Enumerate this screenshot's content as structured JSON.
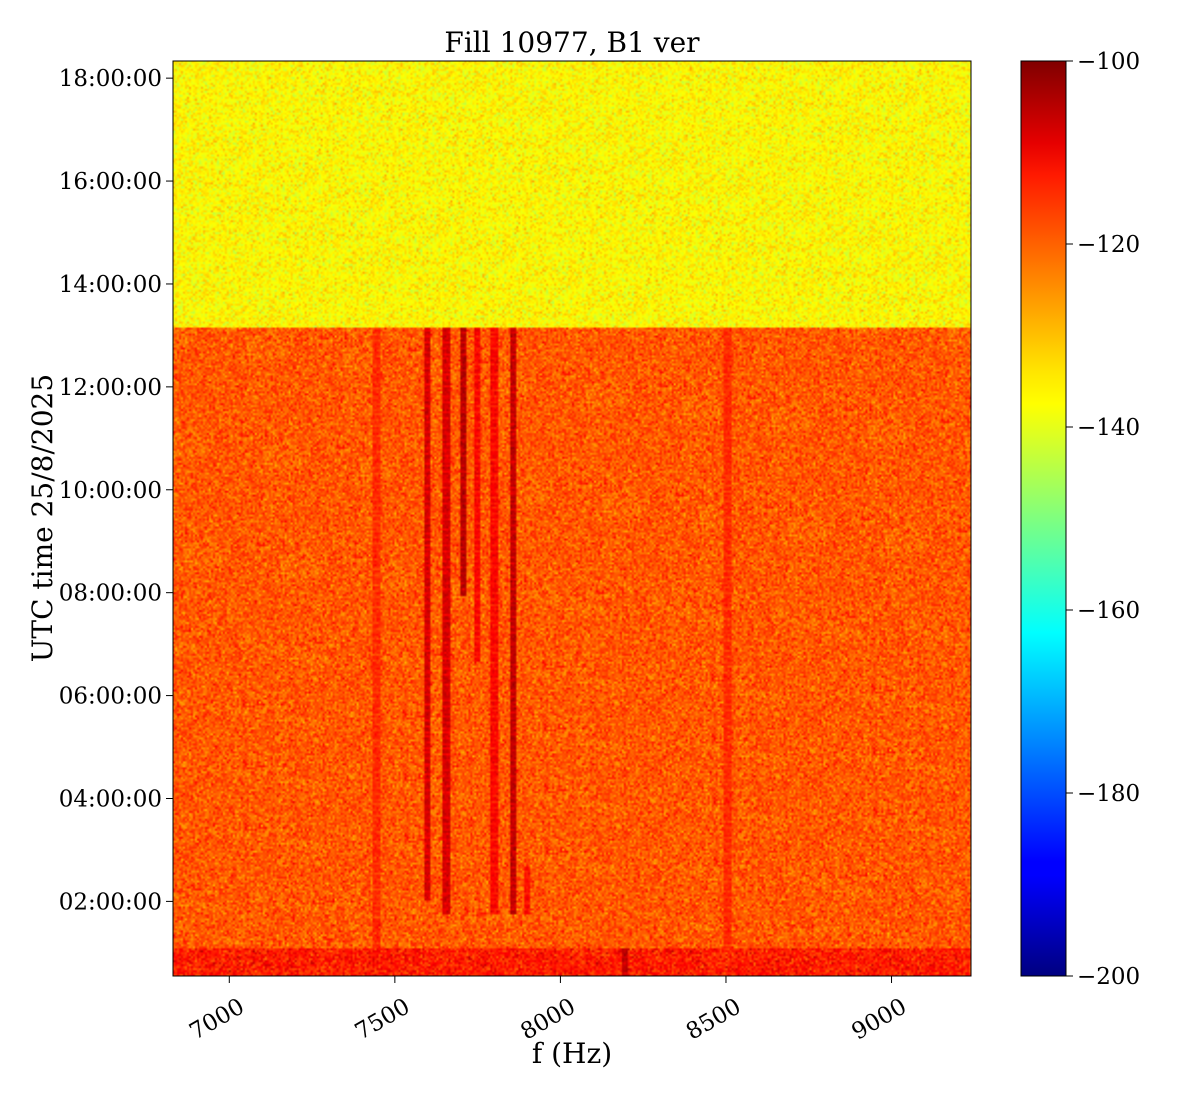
{
  "chart_data": {
    "type": "heatmap",
    "title": "Fill 10977, B1 ver",
    "xlabel": "f (Hz)",
    "ylabel": "UTC time 25/8/2025",
    "xlim": [
      6830,
      9240
    ],
    "ylim": [
      "00:33:00",
      "18:20:00"
    ],
    "x_ticks": [
      7000,
      7500,
      8000,
      8500,
      9000
    ],
    "y_ticks": [
      "02:00:00",
      "04:00:00",
      "06:00:00",
      "08:00:00",
      "10:00:00",
      "12:00:00",
      "14:00:00",
      "16:00:00",
      "18:00:00"
    ],
    "colormap": "jet",
    "colorbar": {
      "range": [
        -200,
        -100
      ],
      "ticks": [
        -200,
        -180,
        -160,
        -140,
        -120,
        -100
      ],
      "tick_labels": [
        "−200",
        "−180",
        "−160",
        "−140",
        "−120",
        "−100"
      ]
    },
    "regions": [
      {
        "t_start": "00:33:00",
        "t_end": "01:05:00",
        "level_db": -115
      },
      {
        "t_start": "01:05:00",
        "t_end": "13:10:00",
        "level_db": -121
      },
      {
        "t_start": "13:10:00",
        "t_end": "18:20:00",
        "level_db": -137
      }
    ],
    "lines": [
      {
        "f_hz": 7445,
        "t_start": "01:05:00",
        "t_end": "13:10:00",
        "level_db": -116
      },
      {
        "f_hz": 7600,
        "t_start": "02:00:00",
        "t_end": "13:10:00",
        "level_db": -108
      },
      {
        "f_hz": 7655,
        "t_start": "01:45:00",
        "t_end": "13:10:00",
        "level_db": -108
      },
      {
        "f_hz": 7705,
        "t_start": "07:55:00",
        "t_end": "13:10:00",
        "level_db": -105
      },
      {
        "f_hz": 7750,
        "t_start": "06:40:00",
        "t_end": "13:10:00",
        "level_db": -112
      },
      {
        "f_hz": 7800,
        "t_start": "01:45:00",
        "t_end": "13:10:00",
        "level_db": -112
      },
      {
        "f_hz": 7855,
        "t_start": "01:45:00",
        "t_end": "13:10:00",
        "level_db": -106
      },
      {
        "f_hz": 7900,
        "t_start": "01:45:00",
        "t_end": "02:40:00",
        "level_db": -113
      },
      {
        "f_hz": 8505,
        "t_start": "01:05:00",
        "t_end": "13:10:00",
        "level_db": -116
      },
      {
        "f_hz": 8195,
        "t_start": "00:33:00",
        "t_end": "01:05:00",
        "level_db": -106
      }
    ]
  }
}
